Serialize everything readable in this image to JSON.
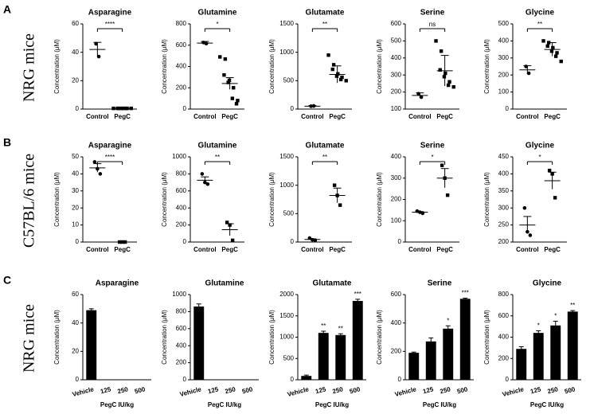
{
  "panels": [
    {
      "label": "A",
      "row_label": "NRG mice"
    },
    {
      "label": "B",
      "row_label": "C57BL/6 mice"
    },
    {
      "label": "C",
      "row_label": "NRG mice"
    }
  ],
  "chart_data": [
    {
      "type": "scatter",
      "title": "Asparagine",
      "y_label": "Concentration (μM)",
      "categories": [
        "Control",
        "PegC"
      ],
      "markers": [
        "circle",
        "square"
      ],
      "color": "#000000",
      "points": [
        [
          46,
          37
        ],
        [
          0.5,
          0.5,
          0.5,
          0.5,
          0.5,
          0.5,
          0.5,
          0.5
        ]
      ],
      "means": [
        42,
        0.5
      ],
      "errors": [
        5,
        0.3
      ],
      "annotation": "****",
      "ylim": [
        0,
        60
      ],
      "yticks": [
        0,
        20,
        40,
        60
      ]
    },
    {
      "type": "scatter",
      "title": "Glutamine",
      "y_label": "Concentration (μM)",
      "categories": [
        "Control",
        "PegC"
      ],
      "markers": [
        "circle",
        "square"
      ],
      "color": "#000000",
      "points": [
        [
          625,
          615
        ],
        [
          490,
          470,
          320,
          270,
          250,
          200,
          100,
          80,
          50
        ]
      ],
      "means": [
        620,
        240
      ],
      "errors": [
        15,
        55
      ],
      "annotation": "*",
      "ylim": [
        0,
        800
      ],
      "yticks": [
        0,
        200,
        400,
        600,
        800
      ]
    },
    {
      "type": "scatter",
      "title": "Glutamate",
      "y_label": "Concentration (μM)",
      "categories": [
        "Control",
        "PegC"
      ],
      "markers": [
        "circle",
        "square"
      ],
      "color": "#000000",
      "points": [
        [
          50,
          55
        ],
        [
          950,
          780,
          700,
          620,
          580,
          560,
          520,
          500
        ]
      ],
      "means": [
        50,
        610
      ],
      "errors": [
        10,
        150
      ],
      "annotation": "**",
      "ylim": [
        0,
        1500
      ],
      "yticks": [
        0,
        500,
        1000,
        1500
      ]
    },
    {
      "type": "scatter",
      "title": "Serine",
      "y_label": "Concentration (μM)",
      "categories": [
        "Control",
        "PegC"
      ],
      "markers": [
        "circle",
        "square"
      ],
      "color": "#000000",
      "points": [
        [
          190,
          170
        ],
        [
          500,
          440,
          330,
          310,
          290,
          260,
          240,
          230
        ]
      ],
      "means": [
        180,
        325
      ],
      "errors": [
        15,
        90
      ],
      "annotation": "ns",
      "ylim": [
        100,
        600
      ],
      "yticks": [
        100,
        200,
        300,
        400,
        500,
        600
      ]
    },
    {
      "type": "scatter",
      "title": "Glycine",
      "y_label": "Concentration (μM)",
      "categories": [
        "Control",
        "PegC"
      ],
      "markers": [
        "circle",
        "square"
      ],
      "color": "#000000",
      "points": [
        [
          250,
          210
        ],
        [
          400,
          390,
          370,
          360,
          340,
          330,
          310,
          280
        ]
      ],
      "means": [
        230,
        350
      ],
      "errors": [
        25,
        40
      ],
      "annotation": "**",
      "ylim": [
        0,
        500
      ],
      "yticks": [
        0,
        100,
        200,
        300,
        400,
        500
      ]
    },
    {
      "type": "scatter",
      "title": "Asparagine",
      "y_label": "Concentration (μM)",
      "categories": [
        "Control",
        "PegC"
      ],
      "markers": [
        "circle",
        "square"
      ],
      "color": "#000000",
      "points": [
        [
          47,
          43,
          40
        ],
        [
          0,
          0,
          0
        ]
      ],
      "means": [
        43.5,
        0
      ],
      "errors": [
        2.5,
        0
      ],
      "annotation": "****",
      "ylim": [
        0,
        50
      ],
      "yticks": [
        0,
        10,
        20,
        30,
        40,
        50
      ]
    },
    {
      "type": "scatter",
      "title": "Glutamine",
      "y_label": "Concentration (μM)",
      "categories": [
        "Control",
        "PegC"
      ],
      "markers": [
        "circle",
        "square"
      ],
      "color": "#000000",
      "points": [
        [
          800,
          700,
          680
        ],
        [
          230,
          200,
          20
        ]
      ],
      "means": [
        725,
        145
      ],
      "errors": [
        40,
        70
      ],
      "annotation": "**",
      "ylim": [
        0,
        1000
      ],
      "yticks": [
        0,
        200,
        400,
        600,
        800,
        1000
      ]
    },
    {
      "type": "scatter",
      "title": "Glutamate",
      "y_label": "Concentration (μM)",
      "categories": [
        "Control",
        "PegC"
      ],
      "markers": [
        "circle",
        "square"
      ],
      "color": "#000000",
      "points": [
        [
          70,
          40,
          30
        ],
        [
          1000,
          820,
          650
        ]
      ],
      "means": [
        45,
        820
      ],
      "errors": [
        12,
        130
      ],
      "annotation": "**",
      "ylim": [
        0,
        1500
      ],
      "yticks": [
        0,
        500,
        1000,
        1500
      ]
    },
    {
      "type": "scatter",
      "title": "Serine",
      "y_label": "Concentration (μM)",
      "categories": [
        "Control",
        "PegC"
      ],
      "markers": [
        "circle",
        "square"
      ],
      "color": "#000000",
      "points": [
        [
          145,
          140,
          135
        ],
        [
          360,
          300,
          220
        ]
      ],
      "means": [
        140,
        300
      ],
      "errors": [
        3,
        45
      ],
      "annotation": "*",
      "ylim": [
        0,
        400
      ],
      "yticks": [
        0,
        100,
        200,
        300,
        400
      ]
    },
    {
      "type": "scatter",
      "title": "Glycine",
      "y_label": "Concentration (μM)",
      "categories": [
        "Control",
        "PegC"
      ],
      "markers": [
        "circle",
        "square"
      ],
      "color": "#000000",
      "points": [
        [
          300,
          230,
          220
        ],
        [
          410,
          400,
          330
        ]
      ],
      "means": [
        250,
        380
      ],
      "errors": [
        25,
        25
      ],
      "annotation": "*",
      "ylim": [
        200,
        450
      ],
      "yticks": [
        200,
        250,
        300,
        350,
        400,
        450
      ]
    },
    {
      "type": "bar",
      "title": "Asparagine",
      "y_label": "Concentration (μM)",
      "x_label": "PegC IU/kg",
      "categories": [
        "Vehicle",
        "125",
        "250",
        "500"
      ],
      "color": "#000000",
      "values": [
        49,
        0,
        0,
        0
      ],
      "errors": [
        1,
        0,
        0,
        0
      ],
      "annotations": [
        null,
        null,
        null,
        null
      ],
      "ylim": [
        0,
        60
      ],
      "yticks": [
        0,
        20,
        40,
        60
      ]
    },
    {
      "type": "bar",
      "title": "Glutamine",
      "y_label": "Concentration (μM)",
      "x_label": "PegC IU/kg",
      "categories": [
        "Vehicle",
        "125",
        "250",
        "500"
      ],
      "color": "#000000",
      "values": [
        860,
        0,
        0,
        0
      ],
      "errors": [
        30,
        0,
        0,
        0
      ],
      "annotations": [
        null,
        null,
        null,
        null
      ],
      "ylim": [
        0,
        1000
      ],
      "yticks": [
        0,
        200,
        400,
        600,
        800,
        1000
      ]
    },
    {
      "type": "bar",
      "title": "Glutamate",
      "y_label": "Concentration (μM)",
      "x_label": "PegC IU/kg",
      "categories": [
        "Vehicle",
        "125",
        "250",
        "500"
      ],
      "color": "#000000",
      "values": [
        90,
        1100,
        1050,
        1850
      ],
      "errors": [
        20,
        40,
        30,
        40
      ],
      "annotations": [
        null,
        "**",
        "**",
        "***"
      ],
      "ylim": [
        0,
        2000
      ],
      "yticks": [
        0,
        500,
        1000,
        1500,
        2000
      ]
    },
    {
      "type": "bar",
      "title": "Serine",
      "y_label": "Concentration (μM)",
      "x_label": "PegC IU/kg",
      "categories": [
        "Vehicle",
        "125",
        "250",
        "500"
      ],
      "color": "#000000",
      "values": [
        190,
        270,
        360,
        570
      ],
      "errors": [
        5,
        25,
        20,
        5
      ],
      "annotations": [
        null,
        null,
        "*",
        "***"
      ],
      "ylim": [
        0,
        600
      ],
      "yticks": [
        0,
        200,
        400,
        600
      ]
    },
    {
      "type": "bar",
      "title": "Glycine",
      "y_label": "Concentration (μM)",
      "x_label": "PegC IU/kg",
      "categories": [
        "Vehicle",
        "125",
        "250",
        "500"
      ],
      "color": "#000000",
      "values": [
        290,
        440,
        510,
        640
      ],
      "errors": [
        20,
        20,
        40,
        10
      ],
      "annotations": [
        null,
        "*",
        "*",
        "**"
      ],
      "ylim": [
        0,
        800
      ],
      "yticks": [
        0,
        200,
        400,
        600,
        800
      ]
    }
  ]
}
